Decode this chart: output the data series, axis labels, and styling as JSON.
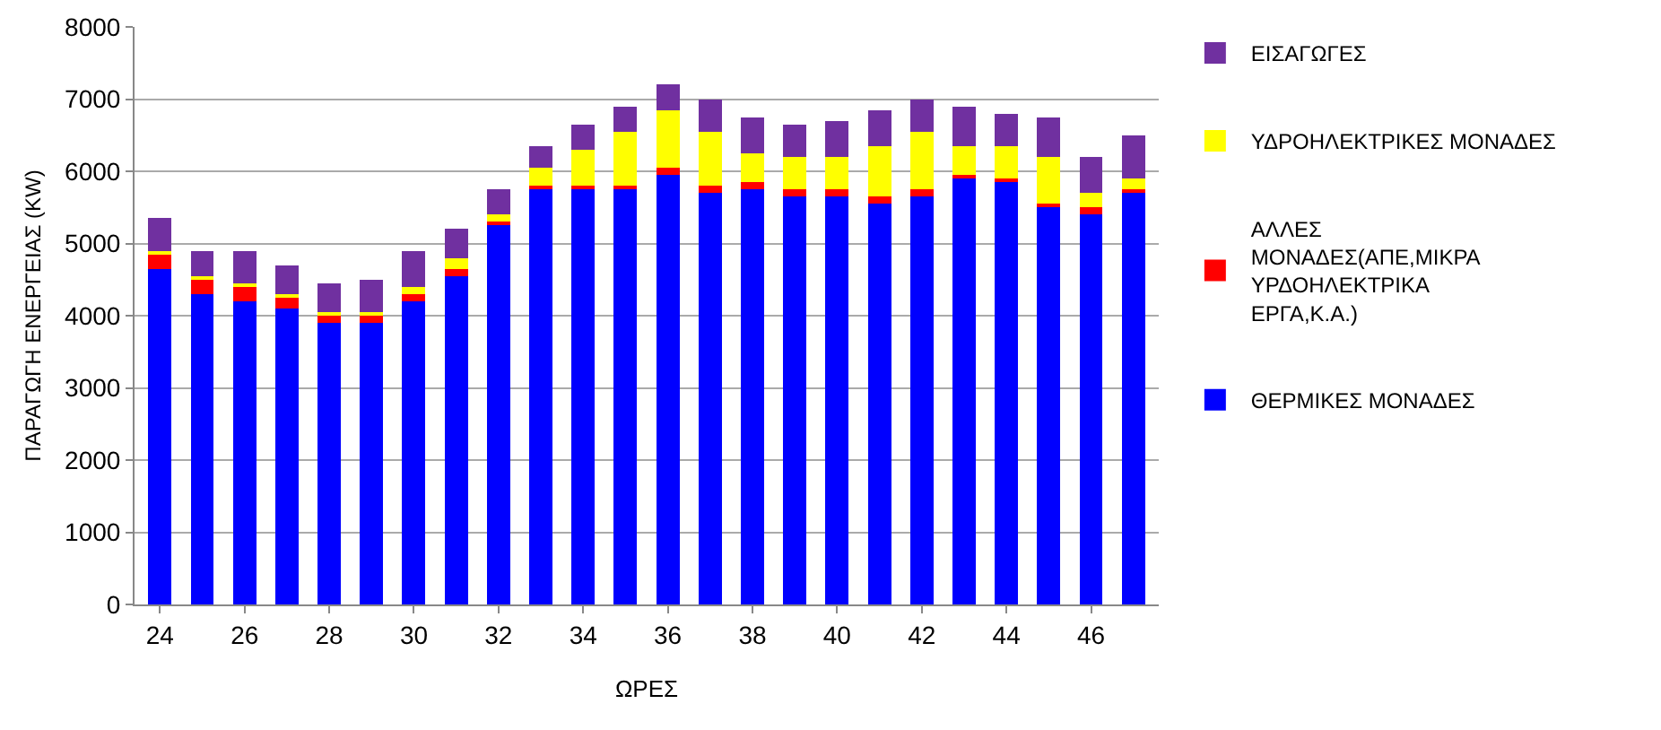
{
  "chart_data": {
    "type": "bar",
    "stacked": true,
    "xlabel": "ΩΡΕΣ",
    "ylabel": "ΠΑΡΑΓΩΓΗ ΕΝΕΡΓΕΙΑΣ (KW)",
    "x": [
      24,
      25,
      26,
      27,
      28,
      29,
      30,
      31,
      32,
      33,
      34,
      35,
      36,
      37,
      38,
      39,
      40,
      41,
      42,
      43,
      44,
      45,
      46,
      47
    ],
    "xlim": [
      23.4,
      47.6
    ],
    "xticks": [
      24,
      26,
      28,
      30,
      32,
      34,
      36,
      38,
      40,
      42,
      44,
      46
    ],
    "ylim": [
      0,
      8000
    ],
    "yticks": [
      0,
      1000,
      2000,
      3000,
      4000,
      5000,
      6000,
      7000,
      8000
    ],
    "grid": "y",
    "legend": "right",
    "series": [
      {
        "name": "ΘΕΡΜΙΚΕΣ ΜΟΝΑΔΕΣ",
        "color": "#0000ff",
        "values": [
          4650,
          4300,
          4200,
          4100,
          3900,
          3900,
          4200,
          4550,
          5250,
          5750,
          5750,
          5750,
          5950,
          5700,
          5750,
          5650,
          5650,
          5550,
          5650,
          5900,
          5850,
          5500,
          5400,
          5700
        ]
      },
      {
        "name": "ΑΛΛΕΣ ΜΟΝΑΔΕΣ(ΑΠΕ,ΜΙΚΡΑ ΥΡΔΟΗΛΕΚΤΡΙΚΑ ΕΡΓΑ,Κ.Α.)",
        "color": "#ff0000",
        "values": [
          200,
          200,
          200,
          150,
          100,
          100,
          100,
          100,
          50,
          50,
          50,
          50,
          100,
          100,
          100,
          100,
          100,
          100,
          100,
          50,
          50,
          50,
          100,
          50
        ]
      },
      {
        "name": "ΥΔΡΟΗΛΕΚΤΡΙΚΕΣ ΜΟΝΑΔΕΣ",
        "color": "#ffff00",
        "values": [
          50,
          50,
          50,
          50,
          50,
          50,
          100,
          150,
          100,
          250,
          500,
          750,
          800,
          750,
          400,
          450,
          450,
          700,
          800,
          400,
          450,
          650,
          200,
          150
        ]
      },
      {
        "name": "ΕΙΣΑΓΩΓΕΣ",
        "color": "#7030a0",
        "values": [
          450,
          350,
          450,
          400,
          400,
          450,
          500,
          400,
          350,
          300,
          350,
          350,
          350,
          450,
          500,
          450,
          500,
          500,
          450,
          550,
          450,
          550,
          500,
          600
        ]
      }
    ]
  }
}
